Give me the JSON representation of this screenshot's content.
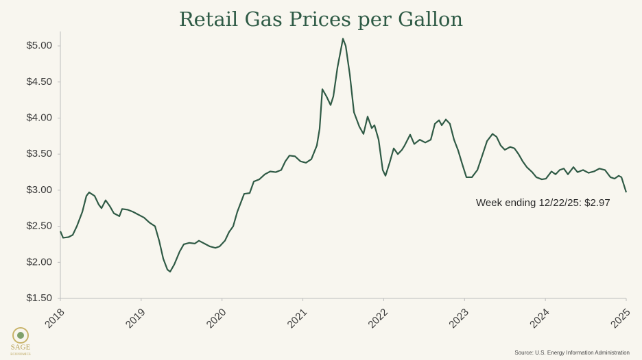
{
  "chart_data": {
    "type": "line",
    "title": "Retail Gas Prices per Gallon",
    "annotation": "Week ending 12/22/25: $2.97",
    "source": "Source: U.S. Energy Information Administration",
    "logo": {
      "name": "SAGE",
      "subtitle": "ECONOMICS"
    },
    "xlim": [
      2018,
      2025
    ],
    "xticks": [
      2018,
      2019,
      2020,
      2021,
      2022,
      2023,
      2024,
      2025
    ],
    "ylim": [
      1.5,
      5.2
    ],
    "yticks": [
      {
        "value": 1.5,
        "label": "$1.50"
      },
      {
        "value": 2,
        "label": "$2.00"
      },
      {
        "value": 2.5,
        "label": "$2.50"
      },
      {
        "value": 3,
        "label": "$3.00"
      },
      {
        "value": 3.5,
        "label": "$3.50"
      },
      {
        "value": 4,
        "label": "$4.00"
      },
      {
        "value": 4.5,
        "label": "$4.50"
      },
      {
        "value": 5,
        "label": "$5.00"
      }
    ],
    "grid": false,
    "x": [
      2018,
      2018.034,
      2018.102,
      2018.153,
      2018.204,
      2018.272,
      2018.322,
      2018.356,
      2018.424,
      2018.475,
      2018.509,
      2018.56,
      2018.611,
      2018.662,
      2018.73,
      2018.764,
      2018.832,
      2018.899,
      2018.967,
      2019.035,
      2019.103,
      2019.171,
      2019.222,
      2019.273,
      2019.324,
      2019.358,
      2019.409,
      2019.476,
      2019.527,
      2019.595,
      2019.663,
      2019.714,
      2019.782,
      2019.85,
      2019.918,
      2019.969,
      2020.036,
      2020.087,
      2020.138,
      2020.189,
      2020.24,
      2020.274,
      2020.342,
      2020.393,
      2020.461,
      2020.529,
      2020.596,
      2020.664,
      2020.732,
      2020.783,
      2020.834,
      2020.902,
      2020.97,
      2021.038,
      2021.105,
      2021.173,
      2021.207,
      2021.241,
      2021.292,
      2021.343,
      2021.377,
      2021.428,
      2021.462,
      2021.496,
      2021.53,
      2021.581,
      2021.632,
      2021.699,
      2021.75,
      2021.801,
      2021.852,
      2021.886,
      2021.937,
      2021.988,
      2022.022,
      2022.073,
      2022.124,
      2022.175,
      2022.226,
      2022.259,
      2022.327,
      2022.378,
      2022.446,
      2022.514,
      2022.582,
      2022.633,
      2022.684,
      2022.718,
      2022.769,
      2022.819,
      2022.87,
      2022.921,
      2022.972,
      2023.023,
      2023.091,
      2023.159,
      2023.21,
      2023.278,
      2023.346,
      2023.396,
      2023.447,
      2023.498,
      2023.566,
      2023.617,
      2023.668,
      2023.719,
      2023.77,
      2023.837,
      2023.888,
      2023.956,
      2024.007,
      2024.075,
      2024.126,
      2024.177,
      2024.228,
      2024.279,
      2024.347,
      2024.398,
      2024.466,
      2024.533,
      2024.601,
      2024.669,
      2024.737,
      2024.805,
      2024.856,
      2024.907,
      2024.941,
      2025
    ],
    "series": [
      {
        "name": "Retail gas price",
        "color": "#2f5a45",
        "values": [
          2.43,
          2.34,
          2.35,
          2.38,
          2.5,
          2.7,
          2.92,
          2.97,
          2.92,
          2.8,
          2.75,
          2.86,
          2.78,
          2.68,
          2.64,
          2.74,
          2.73,
          2.7,
          2.66,
          2.62,
          2.55,
          2.5,
          2.3,
          2.05,
          1.9,
          1.87,
          1.97,
          2.15,
          2.25,
          2.27,
          2.26,
          2.3,
          2.26,
          2.22,
          2.2,
          2.22,
          2.3,
          2.42,
          2.5,
          2.7,
          2.85,
          2.95,
          2.96,
          3.12,
          3.15,
          3.22,
          3.26,
          3.25,
          3.28,
          3.4,
          3.48,
          3.47,
          3.4,
          3.38,
          3.43,
          3.62,
          3.85,
          4.4,
          4.3,
          4.18,
          4.3,
          4.7,
          4.9,
          5.1,
          5.0,
          4.6,
          4.08,
          3.88,
          3.78,
          4.02,
          3.86,
          3.9,
          3.7,
          3.28,
          3.2,
          3.38,
          3.58,
          3.5,
          3.56,
          3.62,
          3.77,
          3.64,
          3.7,
          3.66,
          3.7,
          3.92,
          3.97,
          3.9,
          3.98,
          3.92,
          3.7,
          3.55,
          3.36,
          3.18,
          3.18,
          3.28,
          3.45,
          3.68,
          3.78,
          3.74,
          3.62,
          3.56,
          3.6,
          3.58,
          3.5,
          3.4,
          3.32,
          3.25,
          3.18,
          3.15,
          3.16,
          3.26,
          3.22,
          3.28,
          3.3,
          3.22,
          3.32,
          3.25,
          3.28,
          3.24,
          3.26,
          3.3,
          3.28,
          3.18,
          3.16,
          3.2,
          3.18,
          2.97
        ]
      }
    ]
  }
}
